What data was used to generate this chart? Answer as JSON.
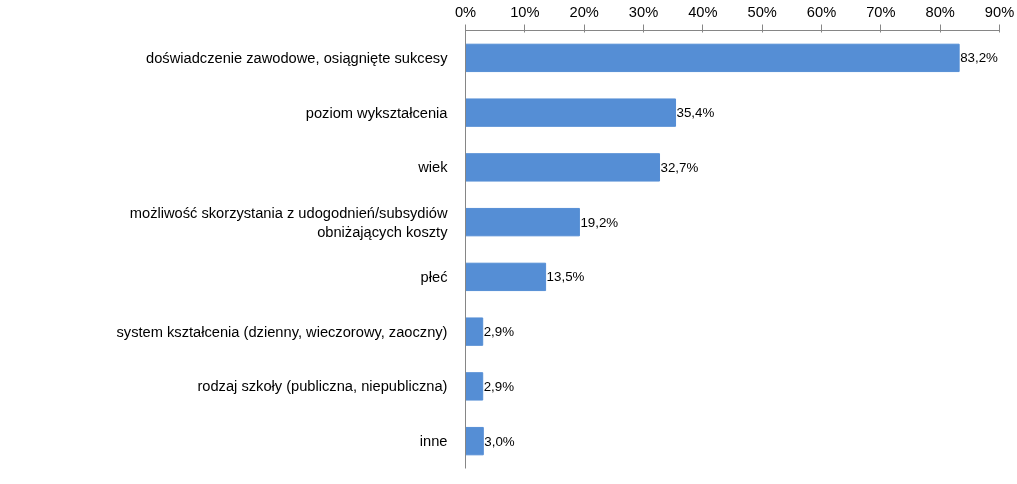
{
  "chart_data": {
    "type": "bar",
    "orientation": "horizontal",
    "categories": [
      "doświadczenie zawodowe, osiągnięte sukcesy",
      "poziom wykształcenia",
      "wiek",
      "możliwość skorzystania z udogodnień/subsydiów obniżających koszty",
      "płeć",
      "system kształcenia (dzienny, wieczorowy, zaoczny)",
      "rodzaj szkoły (publiczna, niepubliczna)",
      "inne"
    ],
    "values": [
      83.2,
      35.4,
      32.7,
      19.2,
      13.5,
      2.9,
      2.9,
      3.0
    ],
    "value_labels": [
      "83,2%",
      "35,4%",
      "32,7%",
      "19,2%",
      "13,5%",
      "2,9%",
      "2,9%",
      "3,0%"
    ],
    "color": "#558ed5",
    "xlim": [
      0,
      90
    ],
    "xticks": [
      {
        "value": 0,
        "label": "0%"
      },
      {
        "value": 10,
        "label": "10%"
      },
      {
        "value": 20,
        "label": "20%"
      },
      {
        "value": 30,
        "label": "30%"
      },
      {
        "value": 40,
        "label": "40%"
      },
      {
        "value": 50,
        "label": "50%"
      },
      {
        "value": 60,
        "label": "60%"
      },
      {
        "value": 70,
        "label": "70%"
      },
      {
        "value": 80,
        "label": "80%"
      },
      {
        "value": 90,
        "label": "90%"
      }
    ],
    "grid": false
  }
}
